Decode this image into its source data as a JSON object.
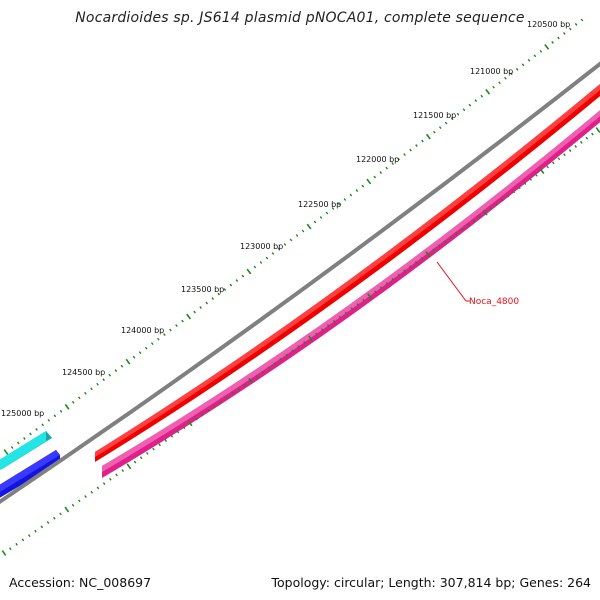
{
  "title": "Nocardioides sp. JS614 plasmid pNOCA01, complete sequence",
  "accession": "Accession: NC_008697",
  "stats": "Topology: circular; Length: 307,814 bp; Genes: 264",
  "ticks": [
    {
      "label": "120500 bp"
    },
    {
      "label": "121000 bp"
    },
    {
      "label": "121500 bp"
    },
    {
      "label": "122000 bp"
    },
    {
      "label": "122500 bp"
    },
    {
      "label": "123000 bp"
    },
    {
      "label": "123500 bp"
    },
    {
      "label": "124000 bp"
    },
    {
      "label": "124500 bp"
    },
    {
      "label": "125000 bp"
    }
  ],
  "gene_label": "Noca_4800",
  "colors": {
    "tick": "#1a8a1a",
    "backbone": "#808080",
    "forward_gene": "#ee0000",
    "reverse_gene": "#e0208a",
    "cyan_gene": "#22dddd",
    "blue_gene": "#1414e0",
    "gene_label": "#e8101a"
  }
}
